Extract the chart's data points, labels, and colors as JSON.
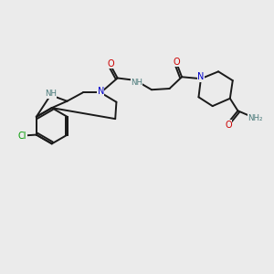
{
  "background_color": "#ebebeb",
  "bond_color": "#1a1a1a",
  "atom_colors": {
    "N": "#0000cc",
    "NH": "#4a7a7a",
    "O": "#cc0000",
    "Cl": "#009900",
    "H": "#4a7a7a"
  },
  "lw": 1.4,
  "fs": 7.0,
  "fs_small": 6.2
}
